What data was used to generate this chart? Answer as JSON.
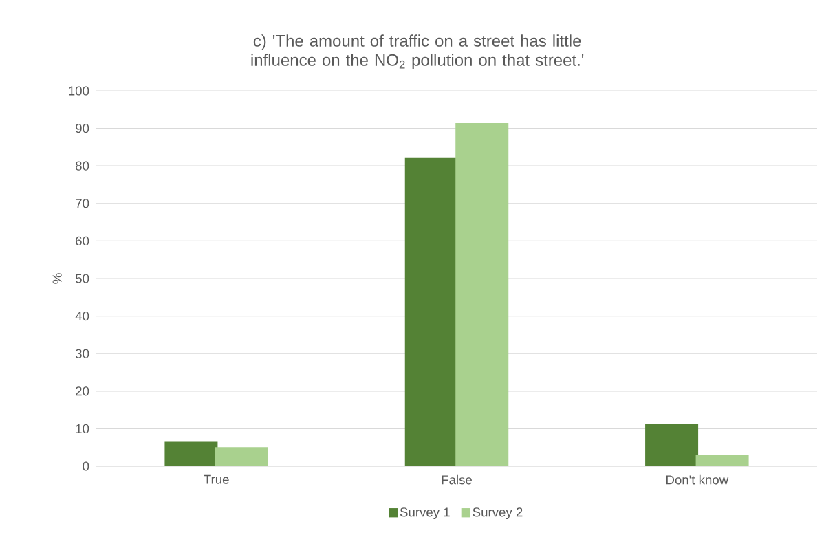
{
  "chart_data": {
    "type": "bar",
    "title": "c) 'The amount of traffic on a street has little influence on the NO$_{2}$ pollution on that street.'",
    "ylabel": "%",
    "categories": [
      "True",
      "False",
      "Don't know"
    ],
    "series": [
      {
        "name": "Survey 1",
        "color": "#548235",
        "values": [
          6.5,
          82.1,
          11.2
        ]
      },
      {
        "name": "Survey 2",
        "color": "#a9d18e",
        "values": [
          5.1,
          91.4,
          3.1
        ]
      }
    ],
    "ylim": [
      0,
      100
    ],
    "yticks": [
      0,
      10,
      20,
      30,
      40,
      50,
      60,
      70,
      80,
      90,
      100
    ],
    "grid": "y",
    "legend": "bottom"
  }
}
